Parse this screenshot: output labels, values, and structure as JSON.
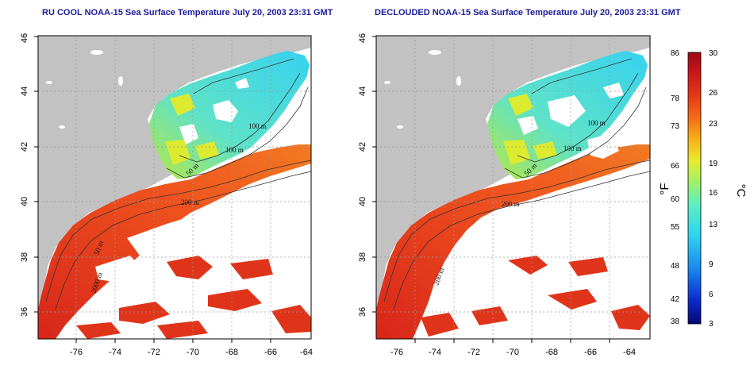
{
  "left_map": {
    "title": "RU COOL NOAA-15 Sea Surface Temperature July 20, 2003 23:31 GMT",
    "contour_labels": [
      "100 m",
      "100 m",
      "50 m",
      "200 m",
      "50 m",
      "200 m",
      "2000 m"
    ]
  },
  "right_map": {
    "title": "DECLOUDED NOAA-15 Sea Surface Temperature July 20, 2003 23:31 GMT",
    "contour_labels": [
      "100 m",
      "100 m",
      "50 m",
      "200 m",
      "200 m"
    ]
  },
  "axes": {
    "x_ticks": [
      "-76",
      "-74",
      "-72",
      "-70",
      "-68",
      "-66",
      "-64"
    ],
    "y_ticks": [
      "36",
      "38",
      "40",
      "42",
      "44",
      "46"
    ],
    "lon_range": [
      -77,
      -63
    ],
    "lat_range": [
      35,
      46
    ],
    "grid": true
  },
  "colorbar": {
    "fahrenheit_label": "°F",
    "celsius_label": "°C",
    "fahrenheit_ticks": [
      "86",
      "78",
      "73",
      "66",
      "60",
      "55",
      "48",
      "42",
      "38"
    ],
    "celsius_ticks": [
      "30",
      "26",
      "23",
      "19",
      "16",
      "13",
      "9",
      "6",
      "3"
    ],
    "range_celsius": [
      3,
      30
    ],
    "colors": [
      "#080870",
      "#0a2cd0",
      "#1a86f0",
      "#2dd6f0",
      "#5cf0c0",
      "#9ef06a",
      "#e8ec2c",
      "#f8b018",
      "#f56a14",
      "#e63a16",
      "#c8141a",
      "#9c0a14"
    ]
  },
  "colors": {
    "land": "#c2c2c2",
    "cloud": "#ffffff",
    "title": "#1a1a9a",
    "warm_water": "#ea4a1e",
    "cool_water": "#42d8ee"
  }
}
